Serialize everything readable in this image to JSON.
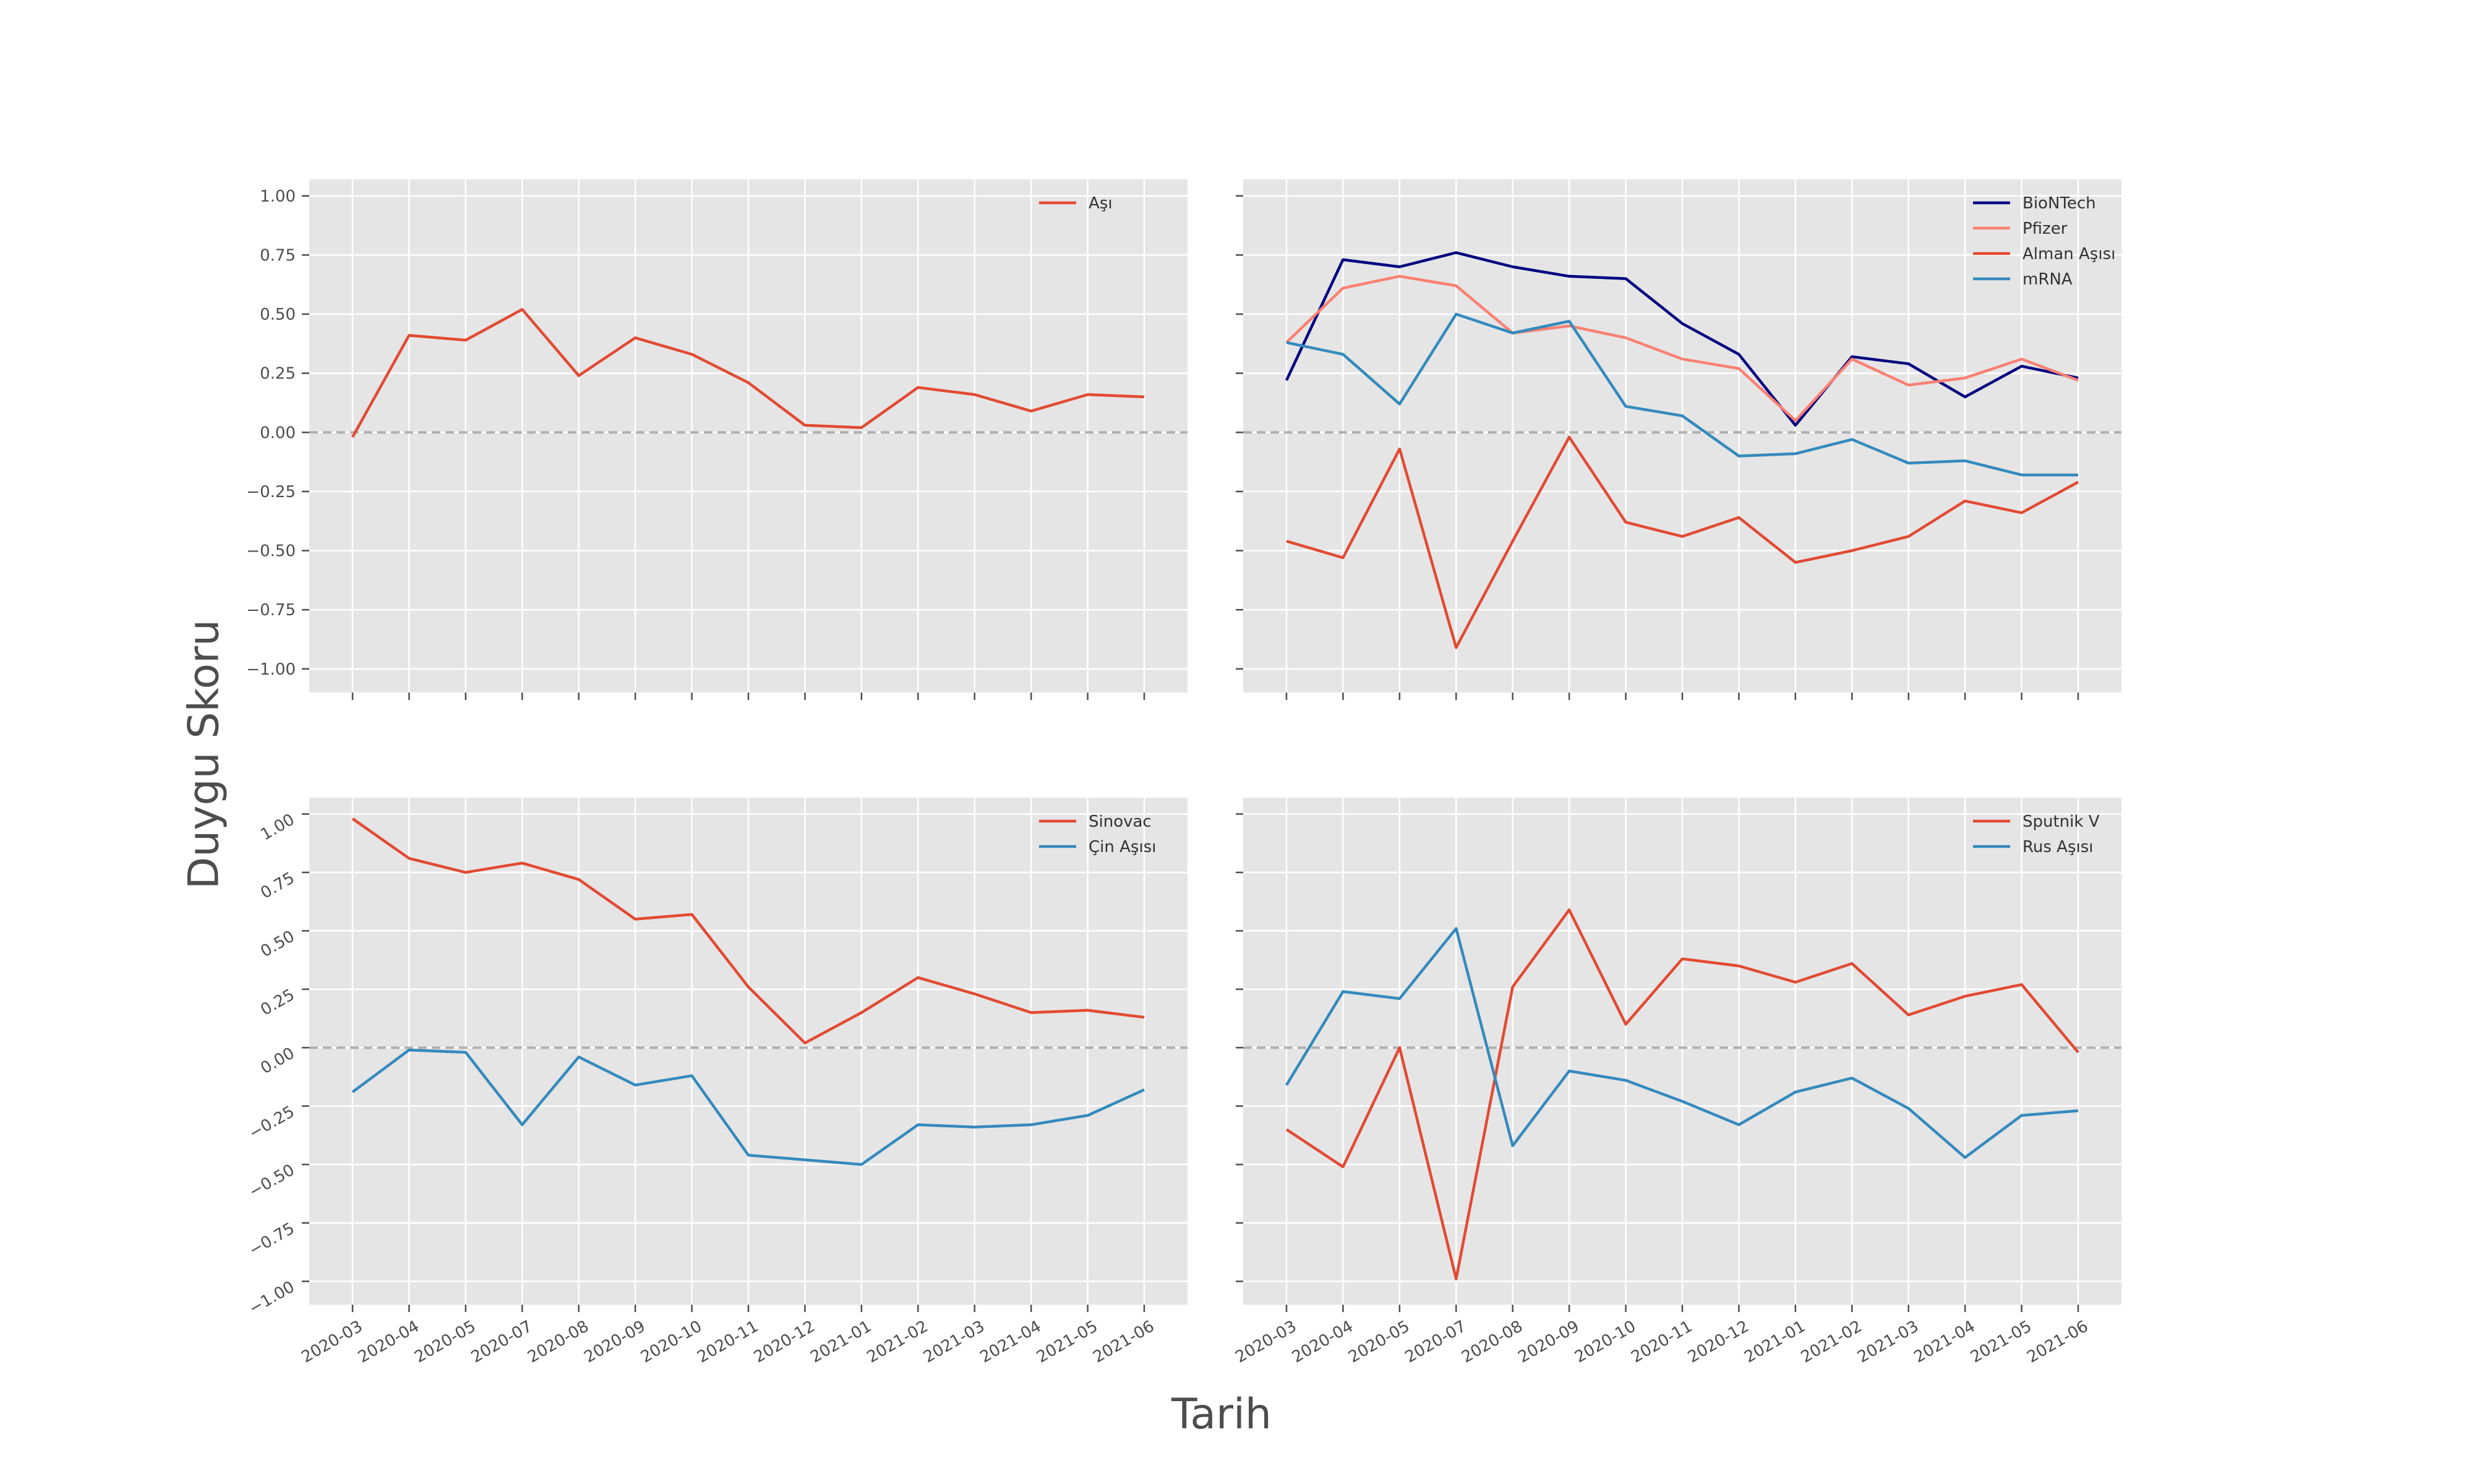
{
  "figure": {
    "xlabel": "Tarih",
    "ylabel": "Duygu Skoru"
  },
  "style": {
    "axes_facecolor": "#e5e5e5",
    "grid_color": "#ffffff",
    "tick_label_color": "#4d4d4d",
    "zero_line_color": "#b0b0b0"
  },
  "chart_data": [
    {
      "type": "line",
      "x": [
        "2020-03",
        "2020-04",
        "2020-05",
        "2020-07",
        "2020-08",
        "2020-09",
        "2020-10",
        "2020-11",
        "2020-12",
        "2021-01",
        "2021-02",
        "2021-03",
        "2021-04",
        "2021-05",
        "2021-06"
      ],
      "ylim": [
        -1.1,
        1.07
      ],
      "yticks": [
        "1.00",
        "0.75",
        "0.50",
        "0.25",
        "0.00",
        "−0.25",
        "−0.50",
        "−0.75",
        "−1.00"
      ],
      "show_y_tick_labels": true,
      "rotate_y_tick_labels": false,
      "show_x_tick_labels": false,
      "zero_line": true,
      "grid": true,
      "legend": "top-right",
      "series": [
        {
          "name": "Aşı",
          "color": "#e24a33",
          "values": [
            -0.02,
            0.41,
            0.39,
            0.52,
            0.24,
            0.4,
            0.33,
            0.21,
            0.03,
            0.02,
            0.19,
            0.16,
            0.09,
            0.16,
            0.15
          ]
        }
      ]
    },
    {
      "type": "line",
      "x": [
        "2020-03",
        "2020-04",
        "2020-05",
        "2020-07",
        "2020-08",
        "2020-09",
        "2020-10",
        "2020-11",
        "2020-12",
        "2021-01",
        "2021-02",
        "2021-03",
        "2021-04",
        "2021-05",
        "2021-06"
      ],
      "ylim": [
        -1.1,
        1.07
      ],
      "yticks": [],
      "show_y_tick_labels": false,
      "rotate_y_tick_labels": false,
      "show_x_tick_labels": false,
      "zero_line": true,
      "grid": true,
      "legend": "top-right",
      "series": [
        {
          "name": "BioNTech",
          "color": "#000080",
          "values": [
            0.22,
            0.73,
            0.7,
            0.76,
            0.7,
            0.66,
            0.65,
            0.46,
            0.33,
            0.03,
            0.32,
            0.29,
            0.15,
            0.28,
            0.23
          ]
        },
        {
          "name": "Pfizer",
          "color": "#fa8072",
          "values": [
            0.38,
            0.61,
            0.66,
            0.62,
            0.42,
            0.45,
            0.4,
            0.31,
            0.27,
            0.05,
            0.31,
            0.2,
            0.23,
            0.31,
            0.22
          ]
        },
        {
          "name": "Alman Aşısı",
          "color": "#e24a33",
          "values": [
            -0.46,
            -0.53,
            -0.07,
            -0.91,
            -0.46,
            -0.02,
            -0.38,
            -0.44,
            -0.36,
            -0.55,
            -0.5,
            -0.44,
            -0.29,
            -0.34,
            -0.21
          ]
        },
        {
          "name": "mRNA",
          "color": "#348abd",
          "values": [
            0.38,
            0.33,
            0.12,
            0.5,
            0.42,
            0.47,
            0.11,
            0.07,
            -0.1,
            -0.09,
            -0.03,
            -0.13,
            -0.12,
            -0.18,
            -0.18
          ]
        }
      ]
    },
    {
      "type": "line",
      "x": [
        "2020-03",
        "2020-04",
        "2020-05",
        "2020-07",
        "2020-08",
        "2020-09",
        "2020-10",
        "2020-11",
        "2020-12",
        "2021-01",
        "2021-02",
        "2021-03",
        "2021-04",
        "2021-05",
        "2021-06"
      ],
      "ylim": [
        -1.1,
        1.07
      ],
      "yticks": [
        "1.00",
        "0.75",
        "0.50",
        "0.25",
        "0.00",
        "−0.25",
        "−0.50",
        "−0.75",
        "−1.00"
      ],
      "show_y_tick_labels": true,
      "rotate_y_tick_labels": true,
      "show_x_tick_labels": true,
      "zero_line": true,
      "grid": true,
      "legend": "top-right",
      "series": [
        {
          "name": "Sinovac",
          "color": "#e24a33",
          "values": [
            0.98,
            0.81,
            0.75,
            0.79,
            0.72,
            0.55,
            0.57,
            0.26,
            0.02,
            0.15,
            0.3,
            0.23,
            0.15,
            0.16,
            0.13
          ]
        },
        {
          "name": "Çin Aşısı",
          "color": "#348abd",
          "values": [
            -0.19,
            -0.01,
            -0.02,
            -0.33,
            -0.04,
            -0.16,
            -0.12,
            -0.46,
            -0.48,
            -0.5,
            -0.33,
            -0.34,
            -0.33,
            -0.29,
            -0.18
          ]
        }
      ]
    },
    {
      "type": "line",
      "x": [
        "2020-03",
        "2020-04",
        "2020-05",
        "2020-07",
        "2020-08",
        "2020-09",
        "2020-10",
        "2020-11",
        "2020-12",
        "2021-01",
        "2021-02",
        "2021-03",
        "2021-04",
        "2021-05",
        "2021-06"
      ],
      "ylim": [
        -1.1,
        1.07
      ],
      "yticks": [],
      "show_y_tick_labels": false,
      "rotate_y_tick_labels": false,
      "show_x_tick_labels": true,
      "zero_line": true,
      "grid": true,
      "legend": "top-right",
      "series": [
        {
          "name": "Sputnik V",
          "color": "#e24a33",
          "values": [
            -0.35,
            -0.51,
            0.0,
            -0.99,
            0.26,
            0.59,
            0.1,
            0.38,
            0.35,
            0.28,
            0.36,
            0.14,
            0.22,
            0.27,
            -0.02
          ]
        },
        {
          "name": "Rus Aşısı",
          "color": "#348abd",
          "values": [
            -0.16,
            0.24,
            0.21,
            0.51,
            -0.42,
            -0.1,
            -0.14,
            -0.23,
            -0.33,
            -0.19,
            -0.13,
            -0.26,
            -0.47,
            -0.29,
            -0.27
          ]
        }
      ]
    }
  ]
}
